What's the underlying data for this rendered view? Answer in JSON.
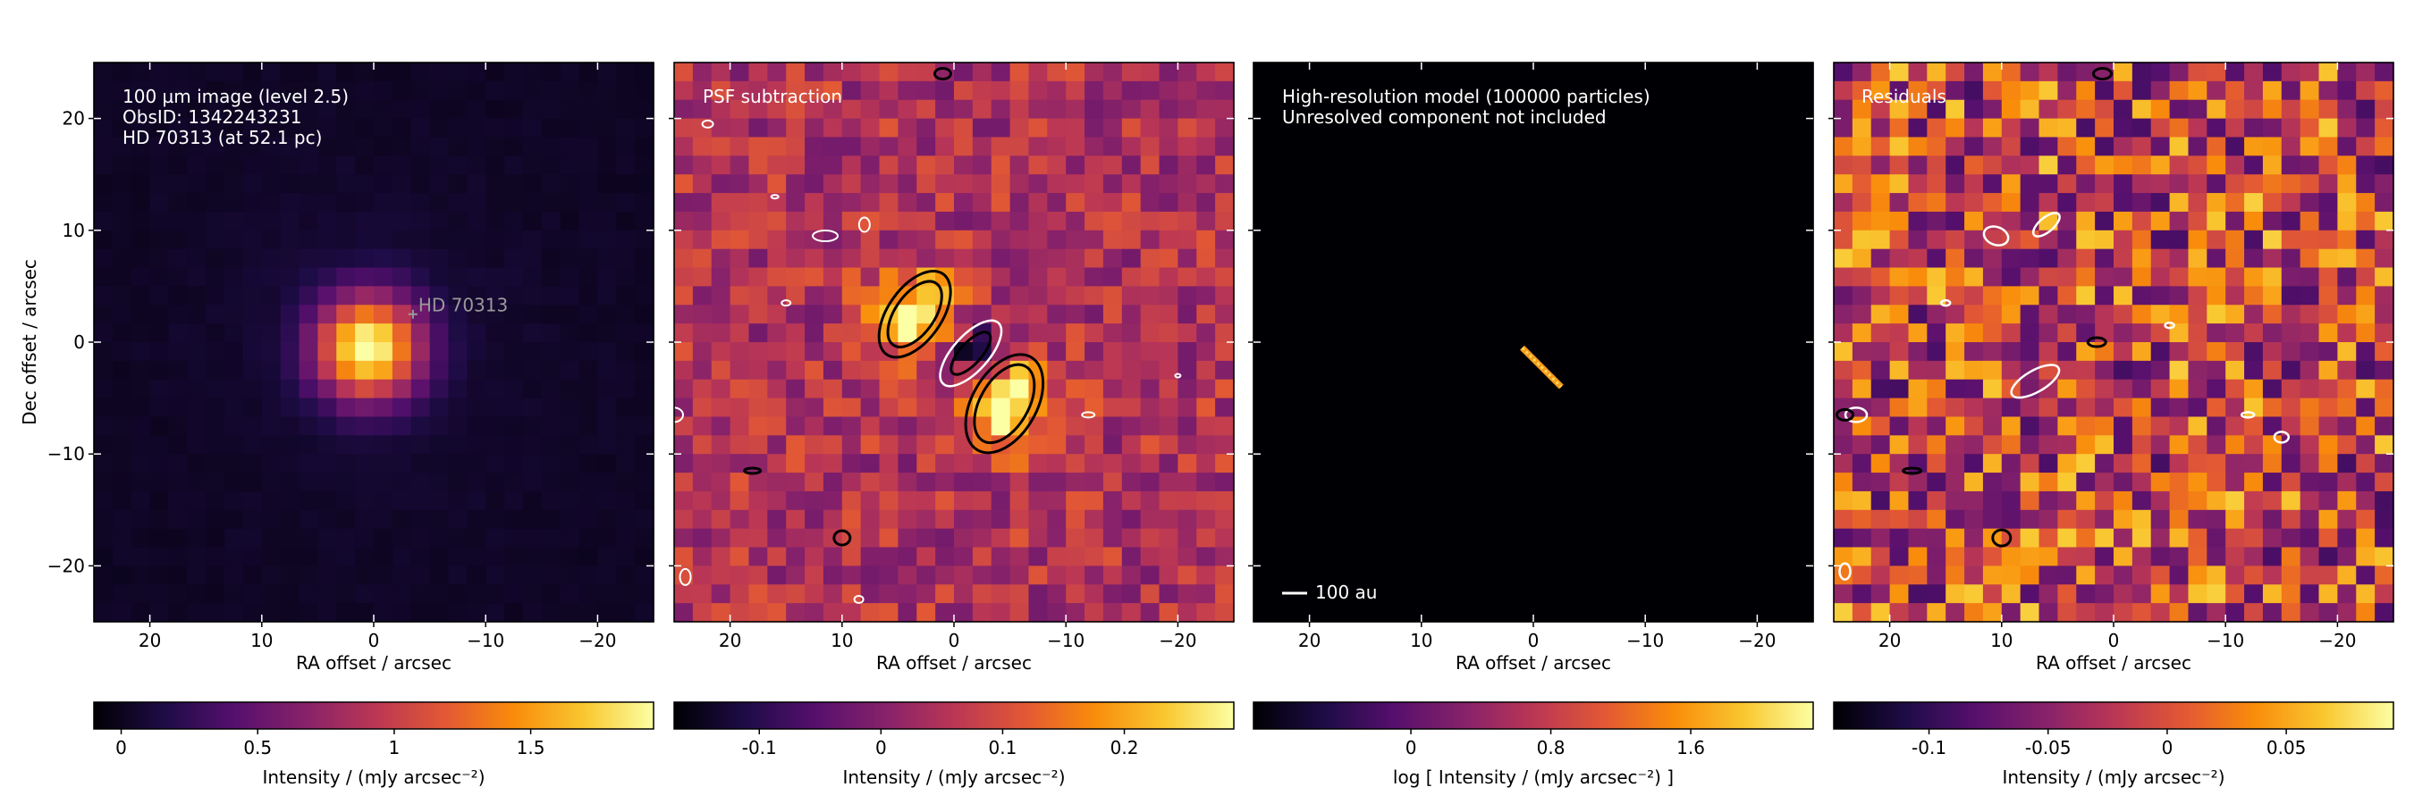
{
  "figure": {
    "xlabel": "RA offset / arcsec",
    "ylabel": "Dec offset / arcsec",
    "xlim": [
      25,
      -25
    ],
    "ylim": [
      -25,
      25
    ],
    "xticks": [
      "20",
      "10",
      "0",
      "−10",
      "−20"
    ],
    "yticks": [
      "20",
      "10",
      "0",
      "−10",
      "−20"
    ]
  },
  "chart_data": [
    {
      "type": "heatmap",
      "panel": "observed-image",
      "annotation_lines": [
        "100 µm image (level 2.5)",
        "ObsID: 1342243231",
        "HD 70313 (at 52.1 pc)"
      ],
      "star_label": "HD  70313",
      "star_position": [
        -3.5,
        2.5
      ],
      "peak_position": [
        0.5,
        -0.5
      ],
      "colormap": "inferno",
      "colorbar": {
        "label": "Intensity / (mJy arcsec⁻²)",
        "range": [
          -0.1,
          1.95
        ],
        "tick_labels": [
          "0",
          "0.5",
          "1",
          "1.5"
        ],
        "tick_values": [
          0,
          0.5,
          1,
          1.5
        ]
      }
    },
    {
      "type": "heatmap",
      "panel": "psf-subtraction",
      "annotation_lines": [
        "PSF subtraction"
      ],
      "positive_lobes": [
        [
          3.5,
          2.5
        ],
        [
          -4.5,
          -5.5
        ]
      ],
      "negative_lobe": [
        -1.5,
        -1.0
      ],
      "colormap": "inferno",
      "colorbar": {
        "label": "Intensity / (mJy arcsec⁻²)",
        "range": [
          -0.17,
          0.29
        ],
        "tick_labels": [
          "-0.1",
          "0",
          "0.1",
          "0.2"
        ],
        "tick_values": [
          -0.1,
          0,
          0.1,
          0.2
        ]
      }
    },
    {
      "type": "heatmap",
      "panel": "high-resolution-model",
      "annotation_lines": [
        "High-resolution model (100000 particles)",
        "Unresolved component not included"
      ],
      "scale_bar_label": "100 au",
      "model_streak": [
        [
          1,
          -0.5
        ],
        [
          -2.5,
          -4
        ]
      ],
      "colormap": "inferno",
      "colorbar": {
        "label": "log [ Intensity / (mJy arcsec⁻²) ]",
        "range": [
          -0.9,
          2.3
        ],
        "tick_labels": [
          "0",
          "0.8",
          "1.6"
        ],
        "tick_values": [
          0,
          0.8,
          1.6
        ]
      }
    },
    {
      "type": "heatmap",
      "panel": "residuals",
      "annotation_lines": [
        "Residuals"
      ],
      "colormap": "inferno",
      "colorbar": {
        "label": "Intensity / (mJy arcsec⁻²)",
        "range": [
          -0.14,
          0.095
        ],
        "tick_labels": [
          "-0.1",
          "-0.05",
          "0",
          "0.05"
        ],
        "tick_values": [
          -0.1,
          -0.05,
          0,
          0.05
        ]
      }
    }
  ]
}
